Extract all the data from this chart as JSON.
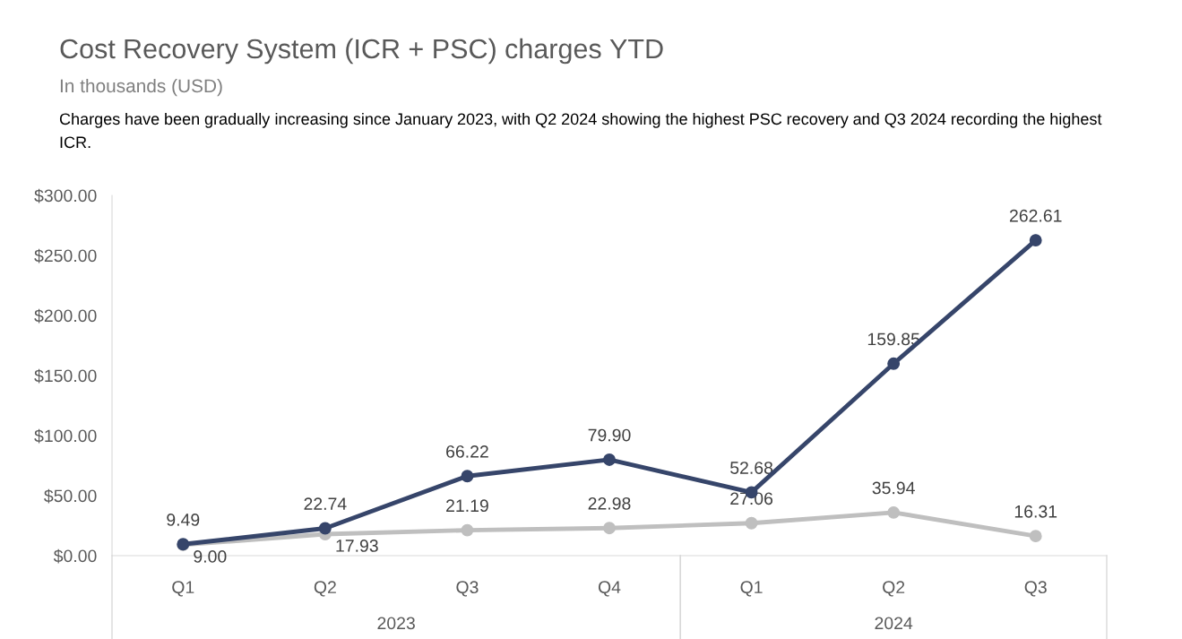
{
  "chart_data": {
    "type": "line",
    "title": "Cost Recovery System (ICR + PSC) charges YTD",
    "subtitle": "In thousands (USD)",
    "annotations": [
      "Charges have been gradually increasing since January 2023, with Q2 2024 showing the highest PSC recovery and Q3 2024 recording the highest ICR.",
      "2023",
      "2024"
    ],
    "categories": [
      "Q1",
      "Q2",
      "Q3",
      "Q4",
      "Q1",
      "Q2",
      "Q3"
    ],
    "series": [
      {
        "color": "#36456a",
        "values": [
          9.49,
          22.74,
          66.22,
          79.9,
          52.68,
          159.85,
          262.61
        ],
        "value_labels": [
          "9.49",
          "22.74",
          "66.22",
          "79.90",
          "52.68",
          "159.85",
          "262.61"
        ]
      },
      {
        "color": "#bfbfbf",
        "values": [
          9.0,
          17.93,
          21.19,
          22.98,
          27.06,
          35.94,
          16.31
        ],
        "value_labels": [
          "9.00",
          "17.93",
          "21.19",
          "22.98",
          "27.06",
          "35.94",
          "16.31"
        ]
      }
    ],
    "ylim": [
      0,
      300
    ],
    "yticks": [
      {
        "value": 0,
        "label": "$0.00"
      },
      {
        "value": 50,
        "label": "$50.00"
      },
      {
        "value": 100,
        "label": "$100.00"
      },
      {
        "value": 150,
        "label": "$150.00"
      },
      {
        "value": 200,
        "label": "$200.00"
      },
      {
        "value": 250,
        "label": "$250.00"
      },
      {
        "value": 300,
        "label": "$300.00"
      }
    ],
    "marker": "circle",
    "line_style": "solid",
    "grid": false,
    "legend": false
  }
}
